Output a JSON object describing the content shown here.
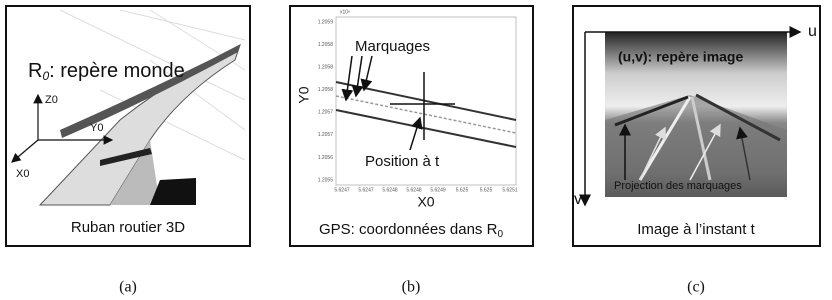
{
  "panels": [
    {
      "title": {
        "main": "R",
        "sub": "0",
        "rest": ": repère monde"
      },
      "axes": [
        "Z0",
        "Y0",
        "X0"
      ],
      "caption": "Ruban routier 3D",
      "label": "(a)"
    },
    {
      "annotations": [
        "Marquages",
        "Position à t"
      ],
      "y_axis_label": "Y0",
      "x_axis_label": "X0",
      "y_tick_labels": [
        "1.2059",
        "1.2058",
        "1.2058",
        "1.2058",
        "1.2057",
        "1.2057",
        "1.2056",
        "1.2055"
      ],
      "x_tick_labels": [
        "5.6247",
        "5.6247",
        "5.6248",
        "5.6248",
        "5.6249",
        "5.625",
        "5.625",
        "5.6251"
      ],
      "scale_label": "x10⁶",
      "caption": {
        "main": "GPS: coordonnées dans R",
        "sub": "0"
      },
      "label": "(b)"
    },
    {
      "axes": [
        "u",
        "v"
      ],
      "title": "(u,v): repère image",
      "annotation": "Projection des marquages",
      "caption": "Image à l’instant t",
      "label": "(c)"
    }
  ]
}
